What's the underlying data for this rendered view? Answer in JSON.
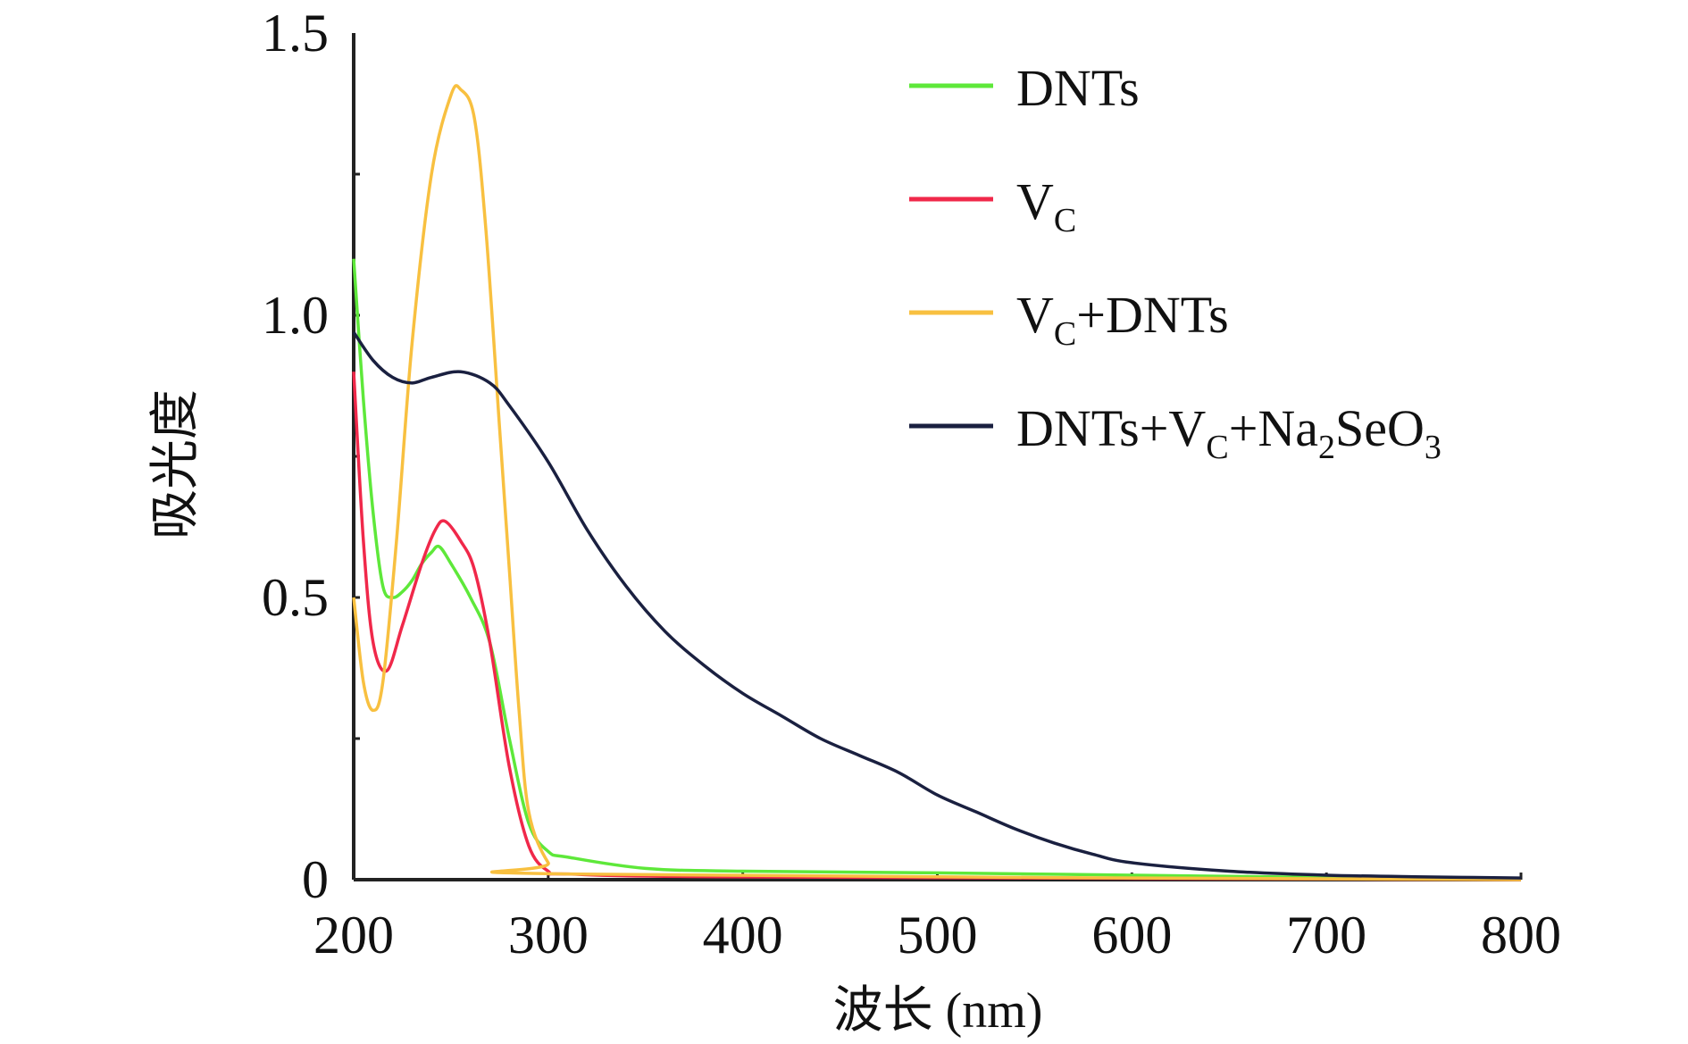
{
  "chart_data": {
    "type": "line",
    "xlabel": "波长 (nm)",
    "ylabel": "吸光度",
    "xlim": [
      200,
      800
    ],
    "ylim": [
      0,
      1.5
    ],
    "xticks": [
      "200",
      "300",
      "400",
      "500",
      "600",
      "700",
      "800"
    ],
    "yticks": [
      "0",
      "0.5",
      "1.0",
      "1.5"
    ],
    "xtick_values": [
      200,
      300,
      400,
      500,
      600,
      700,
      800
    ],
    "ytick_values": [
      0,
      0.5,
      1.0,
      1.5
    ],
    "grid": false,
    "legend_position": "top-right",
    "series": [
      {
        "name": "DNTs",
        "legend": [
          {
            "t": "DNTs"
          }
        ],
        "color": "#5ee83a",
        "x": [
          200,
          205,
          210,
          215,
          220,
          225,
          230,
          235,
          240,
          244,
          250,
          260,
          270,
          280,
          290,
          300,
          310,
          350,
          400,
          500,
          600,
          700,
          800
        ],
        "y": [
          1.1,
          0.85,
          0.65,
          0.52,
          0.5,
          0.51,
          0.53,
          0.56,
          0.58,
          0.59,
          0.56,
          0.5,
          0.42,
          0.25,
          0.1,
          0.05,
          0.04,
          0.02,
          0.015,
          0.012,
          0.008,
          0.004,
          0.002
        ]
      },
      {
        "name": "VC",
        "legend": [
          {
            "t": "V"
          },
          {
            "t": "C",
            "sub": true
          }
        ],
        "color": "#f0284a",
        "x": [
          200,
          205,
          210,
          217,
          225,
          235,
          242,
          247,
          255,
          262,
          270,
          280,
          290,
          300,
          310,
          400,
          800
        ],
        "y": [
          0.9,
          0.6,
          0.42,
          0.37,
          0.45,
          0.56,
          0.62,
          0.635,
          0.6,
          0.55,
          0.42,
          0.2,
          0.06,
          0.015,
          0.01,
          0.005,
          0.0
        ]
      },
      {
        "name": "VC+DNTs",
        "legend": [
          {
            "t": "V"
          },
          {
            "t": "C",
            "sub": true
          },
          {
            "t": "+DNTs"
          }
        ],
        "color": "#f8c040",
        "x": [
          200,
          205,
          210,
          215,
          222,
          230,
          240,
          250,
          255,
          262,
          268,
          275,
          280,
          285,
          290,
          300,
          310,
          800
        ],
        "y": [
          0.5,
          0.35,
          0.3,
          0.35,
          0.6,
          0.95,
          1.25,
          1.39,
          1.4,
          1.35,
          1.15,
          0.8,
          0.55,
          0.3,
          0.12,
          0.03,
          0.01,
          0.0
        ]
      },
      {
        "name": "DNTs+VC+Na2SeO3",
        "legend": [
          {
            "t": "DNTs+V"
          },
          {
            "t": "C",
            "sub": true
          },
          {
            "t": "+Na"
          },
          {
            "t": "2",
            "sub": true
          },
          {
            "t": "SeO"
          },
          {
            "t": "3",
            "sub": true
          }
        ],
        "color": "#1a2040",
        "x": [
          200,
          210,
          220,
          230,
          240,
          255,
          270,
          280,
          300,
          320,
          340,
          360,
          380,
          400,
          420,
          440,
          460,
          480,
          500,
          520,
          540,
          560,
          580,
          600,
          650,
          700,
          750,
          800
        ],
        "y": [
          0.97,
          0.92,
          0.89,
          0.88,
          0.89,
          0.9,
          0.88,
          0.84,
          0.74,
          0.62,
          0.52,
          0.44,
          0.38,
          0.33,
          0.29,
          0.25,
          0.22,
          0.19,
          0.15,
          0.12,
          0.09,
          0.065,
          0.045,
          0.03,
          0.015,
          0.008,
          0.005,
          0.003
        ]
      }
    ]
  }
}
